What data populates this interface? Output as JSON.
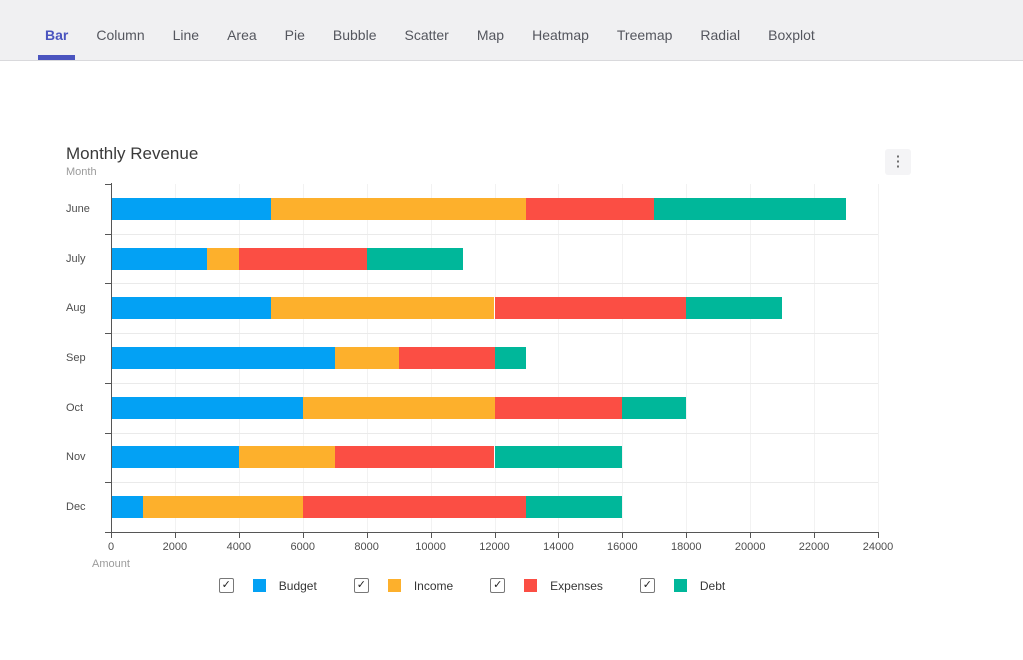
{
  "nav": {
    "tabs": [
      {
        "label": "Bar",
        "active": true
      },
      {
        "label": "Column",
        "active": false
      },
      {
        "label": "Line",
        "active": false
      },
      {
        "label": "Area",
        "active": false
      },
      {
        "label": "Pie",
        "active": false
      },
      {
        "label": "Bubble",
        "active": false
      },
      {
        "label": "Scatter",
        "active": false
      },
      {
        "label": "Map",
        "active": false
      },
      {
        "label": "Heatmap",
        "active": false
      },
      {
        "label": "Treemap",
        "active": false
      },
      {
        "label": "Radial",
        "active": false
      },
      {
        "label": "Boxplot",
        "active": false
      }
    ],
    "active_color": "#4a54bf"
  },
  "chart": {
    "title": "Monthly Revenue",
    "y_axis_title": "Month",
    "x_axis_title": "Amount",
    "menu_icon": "⋮"
  },
  "chart_data": {
    "type": "bar",
    "orientation": "horizontal",
    "stacked": true,
    "title": "Monthly Revenue",
    "xlabel": "Amount",
    "ylabel": "Month",
    "categories": [
      "June",
      "July",
      "Aug",
      "Sep",
      "Oct",
      "Nov",
      "Dec"
    ],
    "series": [
      {
        "name": "Budget",
        "color": "#03a1f4",
        "values": [
          5000,
          3000,
          5000,
          7000,
          6000,
          4000,
          1000
        ]
      },
      {
        "name": "Income",
        "color": "#fdb02c",
        "values": [
          8000,
          1000,
          7000,
          2000,
          6000,
          3000,
          5000
        ]
      },
      {
        "name": "Expenses",
        "color": "#fb4e44",
        "values": [
          4000,
          4000,
          6000,
          3000,
          4000,
          5000,
          7000
        ]
      },
      {
        "name": "Debt",
        "color": "#00b79a",
        "values": [
          6000,
          3000,
          3000,
          1000,
          2000,
          4000,
          3000
        ]
      }
    ],
    "totals": [
      23000,
      11000,
      21000,
      13000,
      18000,
      16000,
      16000
    ],
    "xlim": [
      0,
      24000
    ],
    "x_ticks": [
      0,
      2000,
      4000,
      6000,
      8000,
      10000,
      12000,
      14000,
      16000,
      18000,
      20000,
      22000,
      24000
    ],
    "grid": true,
    "legend": {
      "position": "bottom",
      "checkboxes": true,
      "all_checked": true,
      "check_glyph": "✓"
    }
  }
}
